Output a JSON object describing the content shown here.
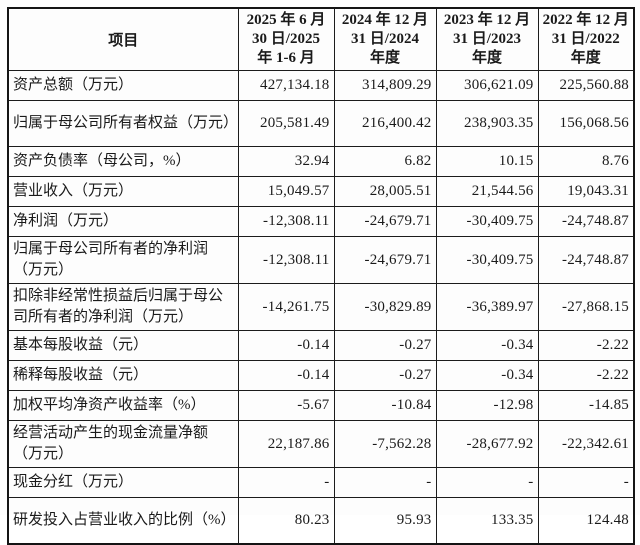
{
  "header": {
    "item": "项目",
    "periods": [
      "2025 年 6 月\n30 日/2025\n年 1-6 月",
      "2024 年 12 月\n31 日/2024\n年度",
      "2023 年 12 月\n31 日/2023\n年度",
      "2022 年 12 月\n31 日/2022\n年度"
    ]
  },
  "rows": [
    {
      "label": "资产总额（万元）",
      "values": [
        "427,134.18",
        "314,809.29",
        "306,621.09",
        "225,560.88"
      ]
    },
    {
      "label": "归属于母公司所有者权益（万元）",
      "values": [
        "205,581.49",
        "216,400.42",
        "238,903.35",
        "156,068.56"
      ]
    },
    {
      "label": "资产负债率（母公司，%）",
      "values": [
        "32.94",
        "6.82",
        "10.15",
        "8.76"
      ]
    },
    {
      "label": "营业收入（万元）",
      "values": [
        "15,049.57",
        "28,005.51",
        "21,544.56",
        "19,043.31"
      ]
    },
    {
      "label": "净利润（万元）",
      "values": [
        "-12,308.11",
        "-24,679.71",
        "-30,409.75",
        "-24,748.87"
      ]
    },
    {
      "label": "归属于母公司所有者的净利润（万元）",
      "values": [
        "-12,308.11",
        "-24,679.71",
        "-30,409.75",
        "-24,748.87"
      ]
    },
    {
      "label": "扣除非经常性损益后归属于母公司所有者的净利润（万元）",
      "values": [
        "-14,261.75",
        "-30,829.89",
        "-36,389.97",
        "-27,868.15"
      ]
    },
    {
      "label": "基本每股收益（元）",
      "values": [
        "-0.14",
        "-0.27",
        "-0.34",
        "-2.22"
      ]
    },
    {
      "label": "稀释每股收益（元）",
      "values": [
        "-0.14",
        "-0.27",
        "-0.34",
        "-2.22"
      ]
    },
    {
      "label": "加权平均净资产收益率（%）",
      "values": [
        "-5.67",
        "-10.84",
        "-12.98",
        "-14.85"
      ]
    },
    {
      "label": "经营活动产生的现金流量净额（万元）",
      "values": [
        "22,187.86",
        "-7,562.28",
        "-28,677.92",
        "-22,342.61"
      ]
    },
    {
      "label": "现金分红（万元）",
      "values": [
        "-",
        "-",
        "-",
        "-"
      ]
    },
    {
      "label": "研发投入占营业收入的比例（%）",
      "values": [
        "80.23",
        "95.93",
        "133.35",
        "124.48"
      ]
    }
  ]
}
